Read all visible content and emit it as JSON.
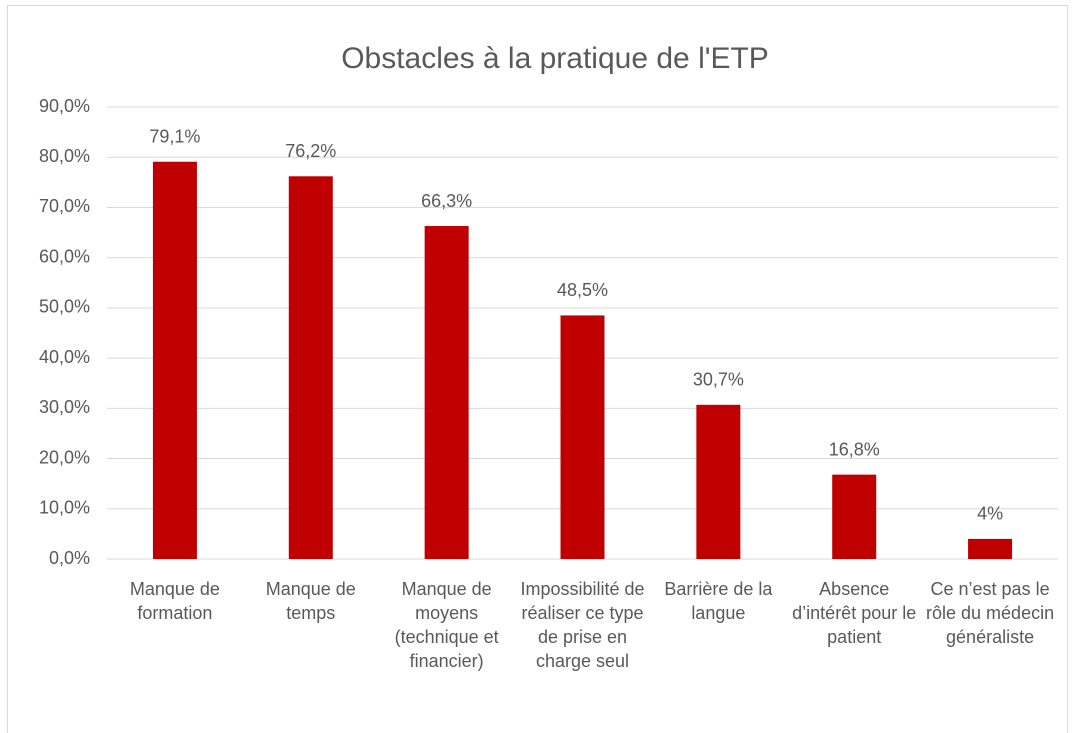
{
  "chart_data": {
    "type": "bar",
    "title": "Obstacles à la pratique de l'ETP",
    "categories": [
      "Manque de formation",
      "Manque de temps",
      "Manque de moyens (technique et financier)",
      "Impossibilité de réaliser ce type de prise en charge seul",
      "Barrière de la langue",
      "Absence d’intérêt pour le patient",
      "Ce n’est pas le rôle du médecin généraliste"
    ],
    "values": [
      79.1,
      76.2,
      66.3,
      48.5,
      30.7,
      16.8,
      4
    ],
    "value_labels": [
      "79,1%",
      "76,2%",
      "66,3%",
      "48,5%",
      "30,7%",
      "16,8%",
      "4%"
    ],
    "color": "#c00000",
    "ylim": [
      0,
      90
    ],
    "yticks": [
      {
        "value": 0,
        "label": "0,0%"
      },
      {
        "value": 10,
        "label": "10,0%"
      },
      {
        "value": 20,
        "label": "20,0%"
      },
      {
        "value": 30,
        "label": "30,0%"
      },
      {
        "value": 40,
        "label": "40,0%"
      },
      {
        "value": 50,
        "label": "50,0%"
      },
      {
        "value": 60,
        "label": "60,0%"
      },
      {
        "value": 70,
        "label": "70,0%"
      },
      {
        "value": 80,
        "label": "80,0%"
      },
      {
        "value": 90,
        "label": "90,0%"
      }
    ],
    "grid": true
  }
}
